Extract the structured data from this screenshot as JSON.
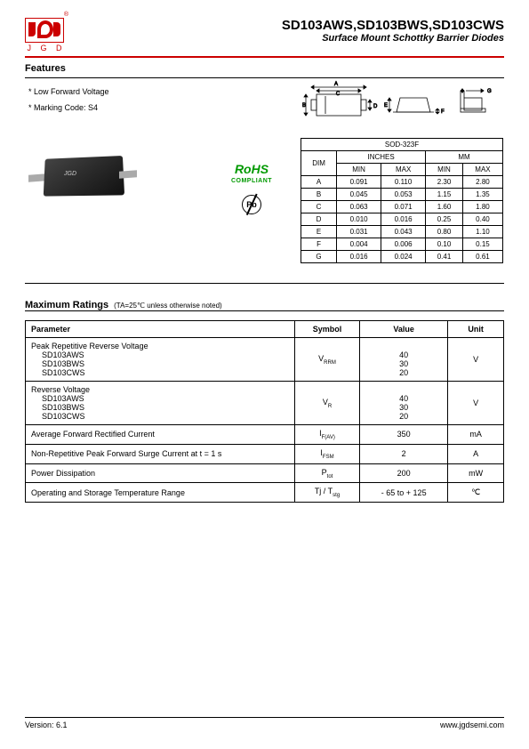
{
  "header": {
    "logo_text": "J G D",
    "part_numbers": "SD103AWS,SD103BWS,SD103CWS",
    "subtitle": "Surface Mount Schottky Barrier Diodes"
  },
  "features": {
    "title": "Features",
    "items": [
      "* Low Forward Voltage",
      "* Marking Code: S4"
    ]
  },
  "rohs": {
    "label": "RoHS",
    "sub": "COMPLIANT"
  },
  "pb_label": "Pb",
  "comp_marking": "JGD",
  "package": {
    "name": "SOD-323F",
    "dim_label": "DIM",
    "inches_label": "INCHES",
    "mm_label": "MM",
    "min_label": "MIN",
    "max_label": "MAX",
    "rows": [
      {
        "d": "A",
        "imin": "0.091",
        "imax": "0.110",
        "mmin": "2.30",
        "mmax": "2.80"
      },
      {
        "d": "B",
        "imin": "0.045",
        "imax": "0.053",
        "mmin": "1.15",
        "mmax": "1.35"
      },
      {
        "d": "C",
        "imin": "0.063",
        "imax": "0.071",
        "mmin": "1.60",
        "mmax": "1.80"
      },
      {
        "d": "D",
        "imin": "0.010",
        "imax": "0.016",
        "mmin": "0.25",
        "mmax": "0.40"
      },
      {
        "d": "E",
        "imin": "0.031",
        "imax": "0.043",
        "mmin": "0.80",
        "mmax": "1.10"
      },
      {
        "d": "F",
        "imin": "0.004",
        "imax": "0.006",
        "mmin": "0.10",
        "mmax": "0.15"
      },
      {
        "d": "G",
        "imin": "0.016",
        "imax": "0.024",
        "mmin": "0.41",
        "mmax": "0.61"
      }
    ]
  },
  "ratings": {
    "title": "Maximum Ratings",
    "note": "(TA=25℃ unless otherwise noted)",
    "headers": {
      "param": "Parameter",
      "symbol": "Symbol",
      "value": "Value",
      "unit": "Unit"
    },
    "rows": [
      {
        "param": "Peak Repetitive Reverse Voltage",
        "sub": [
          "SD103AWS",
          "SD103BWS",
          "SD103CWS"
        ],
        "sym": "V",
        "sub_sym": "RRM",
        "val": [
          "40",
          "30",
          "20"
        ],
        "unit": "V"
      },
      {
        "param": "Reverse Voltage",
        "sub": [
          "SD103AWS",
          "SD103BWS",
          "SD103CWS"
        ],
        "sym": "V",
        "sub_sym": "R",
        "val": [
          "40",
          "30",
          "20"
        ],
        "unit": "V"
      },
      {
        "param": "Average Forward Rectified Current",
        "sym": "I",
        "sub_sym": "F(AV)",
        "val": "350",
        "unit": "mA"
      },
      {
        "param": "Non-Repetitive Peak Forward Surge Current at t = 1 s",
        "sym": "I",
        "sub_sym": "FSM",
        "val": "2",
        "unit": "A"
      },
      {
        "param": "Power Dissipation",
        "sym": "P",
        "sub_sym": "tot",
        "val": "200",
        "unit": "mW"
      },
      {
        "param": "Operating and Storage Temperature Range",
        "sym": "Tj / T",
        "sub_sym": "stg",
        "val": "- 65 to + 125",
        "unit": "℃"
      }
    ]
  },
  "footer": {
    "version": "Version: 6.1",
    "url": "www.jgdsemi.com"
  }
}
